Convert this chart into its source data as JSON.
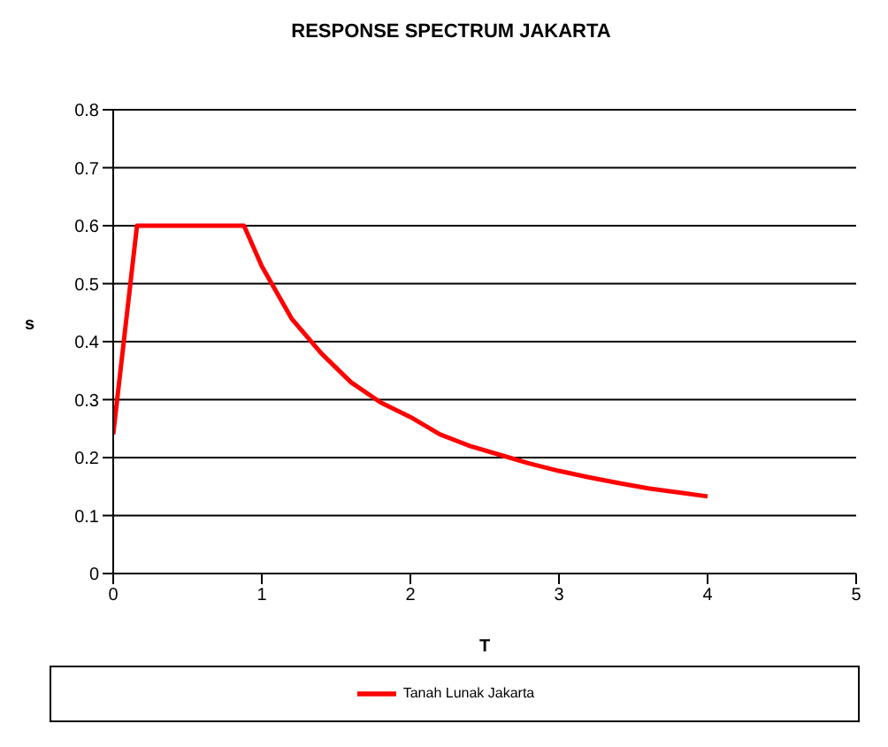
{
  "chart_data": {
    "type": "line",
    "title": "RESPONSE SPECTRUM JAKARTA",
    "xlabel": "T",
    "ylabel": "s",
    "x": [
      0,
      0.16,
      0.88,
      1,
      1.2,
      1.4,
      1.6,
      1.8,
      2,
      2.2,
      2.4,
      2.6,
      2.8,
      3,
      3.2,
      3.4,
      3.6,
      3.8,
      4
    ],
    "series": [
      {
        "name": "Tanah Lunak Jakarta",
        "color": "#ff0000",
        "values": [
          0.24,
          0.6,
          0.6,
          0.53,
          0.44,
          0.38,
          0.33,
          0.295,
          0.27,
          0.24,
          0.22,
          0.205,
          0.19,
          0.177,
          0.166,
          0.156,
          0.147,
          0.14,
          0.133
        ]
      }
    ],
    "xlim": [
      0,
      5
    ],
    "xticks": [
      0,
      1,
      2,
      3,
      4,
      5
    ],
    "ylim": [
      0,
      0.8
    ],
    "yticks": [
      0,
      0.1,
      0.2,
      0.3,
      0.4,
      0.5,
      0.6,
      0.7,
      0.8
    ],
    "grid": "y",
    "legend": "bottom",
    "marker": "none",
    "line_style": "solid"
  }
}
